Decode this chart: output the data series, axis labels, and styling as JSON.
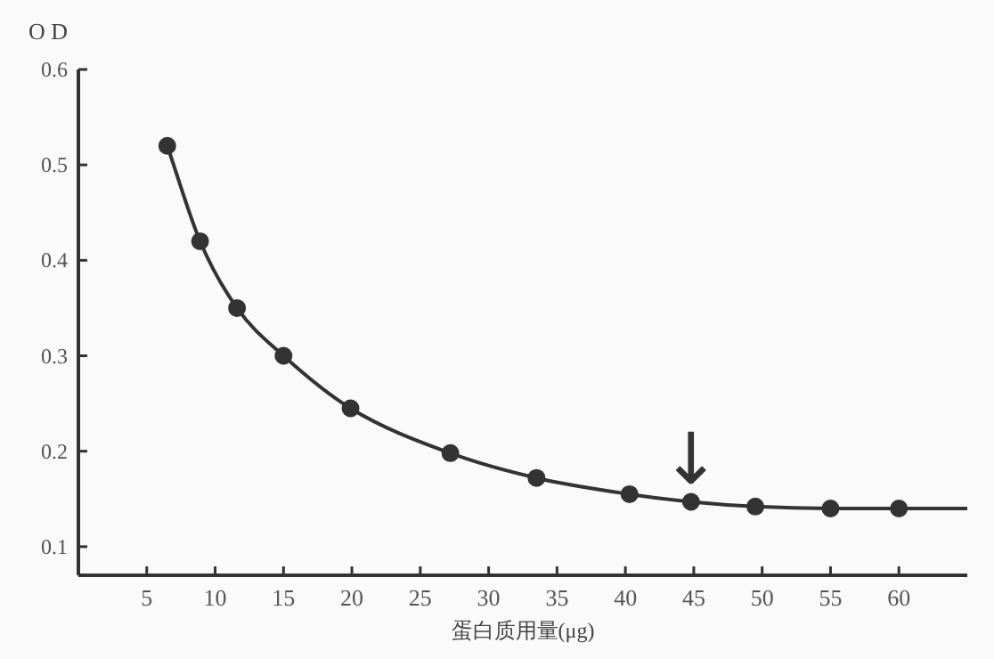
{
  "chart_data": {
    "type": "scatter",
    "ylabel": "O D",
    "xlabel": "蛋白质用量(μg)",
    "xlim": [
      0,
      65
    ],
    "ylim": [
      0.07,
      0.6
    ],
    "xticks": [
      5,
      10,
      15,
      20,
      25,
      30,
      35,
      40,
      45,
      50,
      55,
      60
    ],
    "yticks": [
      0.1,
      0.2,
      0.3,
      0.4,
      0.5,
      0.6
    ],
    "marker": "circle",
    "grid": false,
    "series": [
      {
        "color": "#333333",
        "x": [
          6.5,
          8.9,
          11.6,
          15.0,
          19.9,
          27.2,
          33.5,
          40.3,
          44.8,
          49.5,
          55.0,
          60.0
        ],
        "values": [
          0.52,
          0.42,
          0.35,
          0.3,
          0.245,
          0.198,
          0.172,
          0.155,
          0.147,
          0.142,
          0.14,
          0.14
        ]
      },
      {
        "type": "line",
        "color": "#333333",
        "marker": "none",
        "x": [
          6.5,
          8.9,
          11.6,
          15.0,
          19.9,
          27.2,
          33.5,
          40.3,
          44.8,
          49.5,
          55.0,
          60.0,
          65.0
        ],
        "values": [
          0.52,
          0.42,
          0.35,
          0.3,
          0.245,
          0.198,
          0.172,
          0.155,
          0.147,
          0.142,
          0.14,
          0.14,
          0.14
        ]
      }
    ],
    "annotations": [
      {
        "text": "↓",
        "x": 44.8,
        "y": 0.147
      }
    ]
  }
}
